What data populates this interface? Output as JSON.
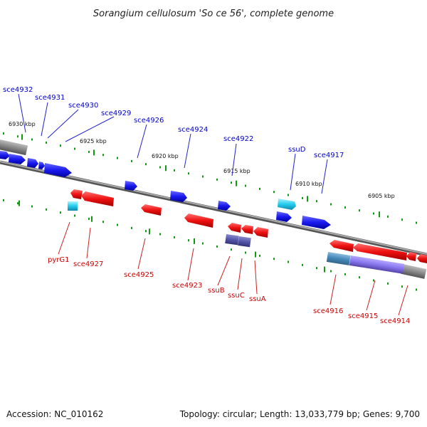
{
  "title": "Sorangium cellulosum 'So ce 56', complete genome",
  "footer": {
    "accession": "Accession: NC_010162",
    "summary": "Topology: circular; Length: 13,033,779 bp; Genes: 9,700"
  },
  "colors": {
    "forward_gene": "#1a1aee",
    "reverse_gene": "#ee1111",
    "rna_gene": "#22ccee",
    "pseudo_gene": "#5555aa",
    "backbone": "#888888",
    "tick": "#119911",
    "label_forward": "#0000cc",
    "label_reverse": "#cc0000"
  },
  "scale_labels": [
    "6930 kbp",
    "6925 kbp",
    "6920 kbp",
    "6915 kbp",
    "6910 kbp",
    "6905 kbp"
  ],
  "forward_labels": [
    "sce4932",
    "sce4931",
    "sce4930",
    "sce4929",
    "sce4926",
    "sce4924",
    "sce4922",
    "ssuD",
    "sce4917"
  ],
  "reverse_labels": [
    "pyrG1",
    "sce4927",
    "sce4925",
    "sce4923",
    "ssuB",
    "ssuC",
    "ssuA",
    "sce4916",
    "sce4915",
    "sce4914"
  ]
}
